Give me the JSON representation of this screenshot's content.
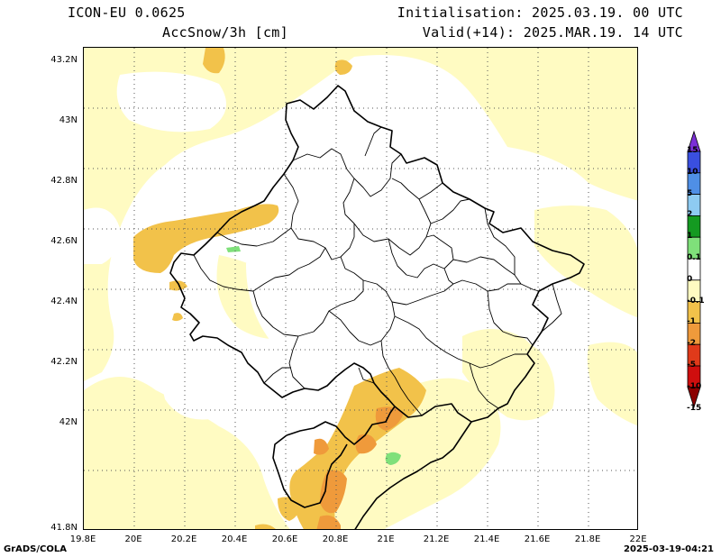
{
  "header": {
    "model": "ICON-EU 0.0625",
    "variable": "AccSnow/3h [cm]",
    "initialisation": "Initialisation: 2025.03.19. 00 UTC",
    "valid": "Valid(+14): 2025.MAR.19. 14 UTC"
  },
  "axes": {
    "y_labels": [
      "43.2N",
      "43N",
      "42.8N",
      "42.6N",
      "42.4N",
      "42.2N",
      "42N",
      "41.8N"
    ],
    "x_labels": [
      "19.8E",
      "20E",
      "20.2E",
      "20.4E",
      "20.6E",
      "20.8E",
      "21E",
      "21.2E",
      "21.4E",
      "21.6E",
      "21.8E",
      "22E"
    ]
  },
  "colorbar": {
    "labels": [
      "15",
      "10",
      "5",
      "2",
      "1",
      "0.1",
      "0",
      "-0.1",
      "-1",
      "-2",
      "-5",
      "-10",
      "-15"
    ],
    "colors": [
      "#7b2fd6",
      "#3a4fe0",
      "#4f8fe6",
      "#8ecbf2",
      "#149a21",
      "#7fe07a",
      "#ffffff",
      "#fffbc2",
      "#f2c24a",
      "#ef9a3b",
      "#e03a1a",
      "#cf0e0e",
      "#8b0000"
    ]
  },
  "footer": {
    "left": "GrADS/COLA",
    "right": "2025-03-19-04:21"
  }
}
